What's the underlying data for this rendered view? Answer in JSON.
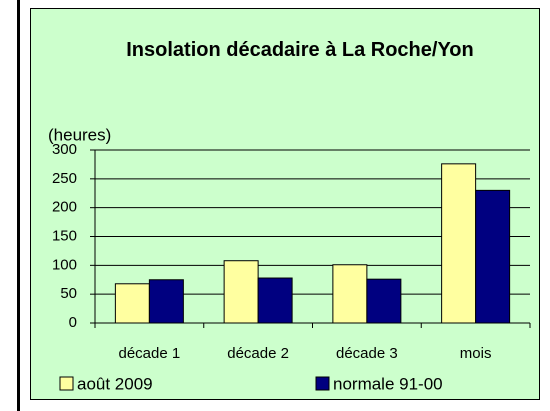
{
  "chart_data": {
    "type": "bar",
    "title": "Insolation décadaire à La Roche/Yon",
    "y_label": "(heures)",
    "categories": [
      "décade 1",
      "décade 2",
      "décade 3",
      "mois"
    ],
    "series": [
      {
        "name": "août 2009",
        "color": "#ffffa0",
        "values": [
          68,
          108,
          101,
          276
        ]
      },
      {
        "name": "normale 91-00",
        "color": "#000080",
        "values": [
          75,
          78,
          76,
          230
        ]
      }
    ],
    "ylim": [
      0,
      300
    ],
    "yticks": [
      0,
      50,
      100,
      150,
      200,
      250,
      300
    ],
    "grid": true,
    "legend": "bottom"
  }
}
